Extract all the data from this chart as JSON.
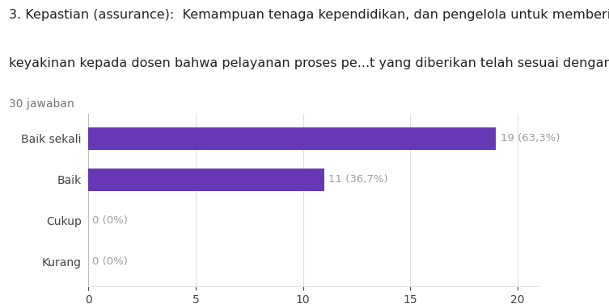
{
  "title_line1": "3. Kepastian (assurance):  Kemampuan tenaga kependidikan, dan pengelola untuk memberi",
  "title_line2": "keyakinan kepada dosen bahwa pelayanan proses pe...t yang diberikan telah sesuai dengan ketentuan.",
  "subtitle": "30 jawaban",
  "categories": [
    "Baik sekali",
    "Baik",
    "Cukup",
    "Kurang"
  ],
  "values": [
    19,
    11,
    0,
    0
  ],
  "labels": [
    "19 (63,3%)",
    "11 (36,7%)",
    "0 (0%)",
    "0 (0%)"
  ],
  "bar_color": "#6638b6",
  "background_color": "#ffffff",
  "plot_bg_color": "#ffffff",
  "grid_color": "#e0e0e0",
  "xlim": [
    0,
    21
  ],
  "xticks": [
    0,
    5,
    10,
    15,
    20
  ],
  "title_fontsize": 11.5,
  "subtitle_fontsize": 10,
  "label_fontsize": 9.5,
  "tick_fontsize": 10,
  "bar_height": 0.55,
  "figsize": [
    7.53,
    3.82
  ],
  "dpi": 100
}
